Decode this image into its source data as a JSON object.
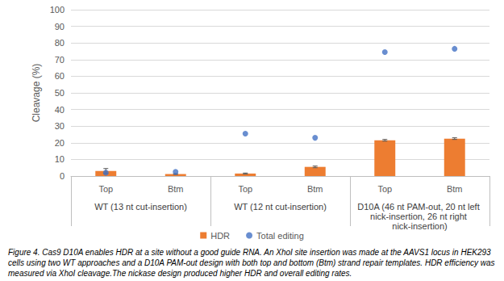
{
  "chart_data": {
    "type": "bar",
    "ylabel": "Cleavage (%)",
    "categories": [
      "Top",
      "Btm",
      "Top",
      "Btm",
      "Top",
      "Btm"
    ],
    "groups": [
      "WT (13 nt cut-insertion)",
      "WT (12 nt cut-insertion)",
      "D10A (46 nt PAM-out, 20 nt left nick-insertion, 26 nt right nick-insertion)"
    ],
    "series": [
      {
        "name": "HDR",
        "type": "bar",
        "color": "#ed7d31",
        "values": [
          3,
          1.2,
          1.5,
          5.5,
          21.5,
          22.5
        ],
        "errors": [
          1.5,
          0.3,
          0.3,
          0.5,
          0.5,
          0.5
        ]
      },
      {
        "name": "Total editing",
        "type": "scatter",
        "color": "#4472c4",
        "marker": "circle",
        "values": [
          2,
          2.5,
          25.5,
          23,
          74.5,
          76.5
        ]
      }
    ],
    "ylim": [
      0,
      100
    ],
    "yticks": [
      0,
      10,
      20,
      30,
      40,
      50,
      60,
      70,
      80,
      90,
      100
    ],
    "grid": true,
    "legend": "bottom"
  },
  "caption": "Figure 4. Cas9 D10A enables HDR at a site without a good guide RNA. An XhoI site insertion was made at the AAVS1 locus in HEK293 cells using two WT approaches and a D10A PAM-out design with both top and bottom (Btm) strand repair templates. HDR efficiency was measured via XhoI cleavage.The nickase design produced higher HDR and overall editing rates."
}
